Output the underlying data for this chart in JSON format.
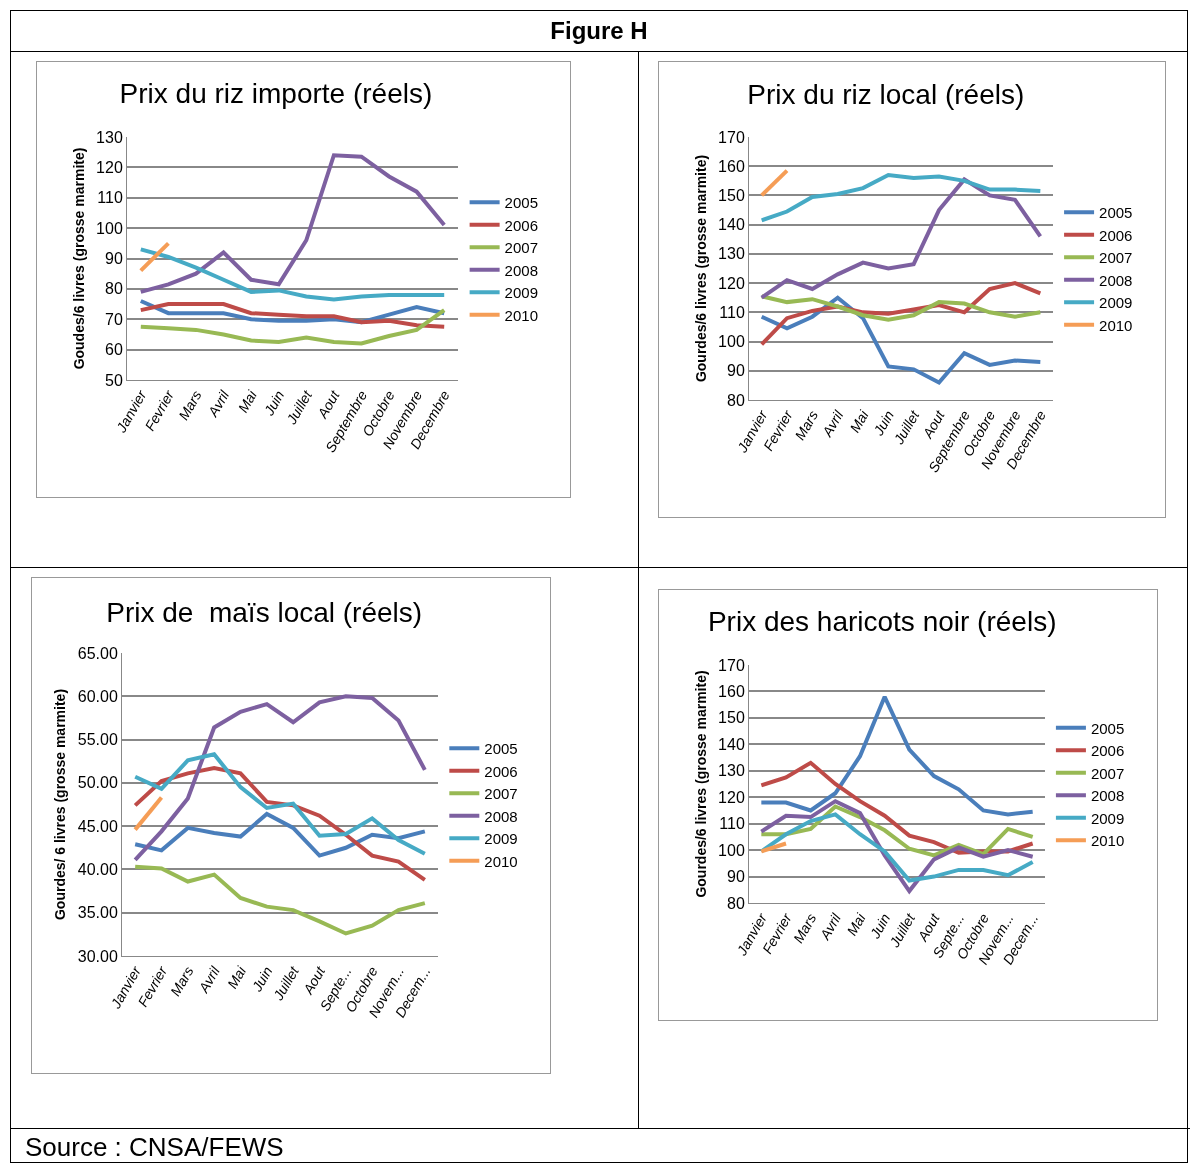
{
  "chart_data": [
    {
      "type": "line",
      "title": "Prix du riz importe (réels)",
      "ylabel": "Goudes/6 livres (grosse marmite)",
      "annotations": [
        "Figure H"
      ],
      "categories": [
        "Janvier",
        "Fevrier",
        "Mars",
        "Avril",
        "Mai",
        "Juin",
        "Juillet",
        "Aout",
        "Septembre",
        "Octobre",
        "Novembre",
        "Decembre"
      ],
      "ylim": [
        50,
        130
      ],
      "yticks": [
        50,
        60,
        70,
        80,
        90,
        100,
        110,
        120,
        130
      ],
      "grid": "y",
      "legend": "right",
      "marker": "none",
      "line_style": "solid",
      "series": [
        {
          "name": "2005",
          "color": "#4a7ebb",
          "values": [
            76,
            72,
            72,
            72,
            70,
            69.5,
            69.5,
            70,
            69,
            71.5,
            74,
            72
          ]
        },
        {
          "name": "2006",
          "color": "#be4b48",
          "values": [
            73,
            75,
            75,
            75,
            72,
            71.5,
            71,
            71,
            69,
            69.5,
            68,
            67.5
          ]
        },
        {
          "name": "2007",
          "color": "#98b954",
          "values": [
            67.5,
            67,
            66.5,
            65,
            63,
            62.5,
            64,
            62.5,
            62,
            64.5,
            66.5,
            73
          ]
        },
        {
          "name": "2008",
          "color": "#7d60a0",
          "values": [
            79,
            81.5,
            85,
            92,
            83,
            81.5,
            96,
            124,
            123.5,
            117,
            112,
            101
          ]
        },
        {
          "name": "2009",
          "color": "#46aac5",
          "values": [
            93,
            90.5,
            87,
            83,
            79,
            79.5,
            77.5,
            76.5,
            77.5,
            78,
            78,
            78
          ]
        },
        {
          "name": "2010",
          "color": "#f59d56",
          "values": [
            86,
            95,
            null,
            null,
            null,
            null,
            null,
            null,
            null,
            null,
            null,
            null
          ]
        }
      ]
    },
    {
      "type": "line",
      "title": "Prix du riz local (réels)",
      "ylabel": "Gourdes/6 livres (grosse marmite)",
      "categories": [
        "Janvier",
        "Fevrier",
        "Mars",
        "Avril",
        "Mai",
        "Juin",
        "Juillet",
        "Aout",
        "Septembre",
        "Octobre",
        "Novembre",
        "Decembre"
      ],
      "ylim": [
        80,
        170
      ],
      "yticks": [
        80,
        90,
        100,
        110,
        120,
        130,
        140,
        150,
        160,
        170
      ],
      "grid": "y",
      "legend": "right",
      "marker": "none",
      "line_style": "solid",
      "series": [
        {
          "name": "2005",
          "color": "#4a7ebb",
          "values": [
            108.5,
            104.5,
            108.5,
            115,
            108,
            91.5,
            90.5,
            86,
            96,
            92,
            93.5,
            93
          ]
        },
        {
          "name": "2006",
          "color": "#be4b48",
          "values": [
            99,
            108,
            110.5,
            112,
            110,
            109.5,
            111,
            112.5,
            110,
            118,
            120,
            116.5
          ]
        },
        {
          "name": "2007",
          "color": "#98b954",
          "values": [
            115.5,
            113.5,
            114.5,
            112,
            109,
            107.5,
            109,
            113.5,
            113,
            110,
            108.5,
            110
          ]
        },
        {
          "name": "2008",
          "color": "#7d60a0",
          "values": [
            115,
            121,
            118,
            123,
            127,
            125,
            126.5,
            145,
            155.5,
            150,
            148.5,
            136
          ]
        },
        {
          "name": "2009",
          "color": "#46aac5",
          "values": [
            141.5,
            144.5,
            149.5,
            150.5,
            152.5,
            157,
            156,
            156.5,
            155,
            152,
            152,
            151.5
          ]
        },
        {
          "name": "2010",
          "color": "#f59d56",
          "values": [
            150,
            158.5,
            null,
            null,
            null,
            null,
            null,
            null,
            null,
            null,
            null,
            null
          ]
        }
      ]
    },
    {
      "type": "line",
      "title": "Prix de  maïs local (réels)",
      "ylabel": "Gourdes/ 6 livres (grosse marmite)",
      "categories": [
        "Janvier",
        "Fevrier",
        "Mars",
        "Avril",
        "Mai",
        "Juin",
        "Juillet",
        "Aout",
        "Septe...",
        "Octobre",
        "Novem...",
        "Decem..."
      ],
      "ylim": [
        30,
        65
      ],
      "yticks": [
        {
          "value": 30,
          "label": "30.00"
        },
        {
          "value": 35,
          "label": "35.00"
        },
        {
          "value": 40,
          "label": "40.00"
        },
        {
          "value": 45,
          "label": "45.00"
        },
        {
          "value": 50,
          "label": "50.00"
        },
        {
          "value": 55,
          "label": "55.00"
        },
        {
          "value": 60,
          "label": "60.00"
        },
        {
          "value": 65,
          "label": "65.00"
        }
      ],
      "grid": "y",
      "legend": "right",
      "marker": "none",
      "line_style": "solid",
      "series": [
        {
          "name": "2005",
          "color": "#4a7ebb",
          "values": [
            42.9,
            42.2,
            44.8,
            44.2,
            43.8,
            46.4,
            44.8,
            41.6,
            42.5,
            44.0,
            43.6,
            44.4
          ]
        },
        {
          "name": "2006",
          "color": "#be4b48",
          "values": [
            47.4,
            50.2,
            51.1,
            51.7,
            51.1,
            47.8,
            47.4,
            46.2,
            44.0,
            41.6,
            40.9,
            38.8
          ]
        },
        {
          "name": "2007",
          "color": "#98b954",
          "values": [
            40.3,
            40.1,
            38.6,
            39.4,
            36.7,
            35.7,
            35.3,
            34.0,
            32.6,
            33.5,
            35.3,
            36.1
          ]
        },
        {
          "name": "2008",
          "color": "#7d60a0",
          "values": [
            41.1,
            44.4,
            48.2,
            56.4,
            58.2,
            59.1,
            57.0,
            59.3,
            60.0,
            59.8,
            57.2,
            51.5
          ]
        },
        {
          "name": "2009",
          "color": "#46aac5",
          "values": [
            50.7,
            49.3,
            52.6,
            53.3,
            49.5,
            47.1,
            47.6,
            43.9,
            44.1,
            45.9,
            43.4,
            41.8
          ]
        },
        {
          "name": "2010",
          "color": "#f59d56",
          "values": [
            44.6,
            48.3,
            null,
            null,
            null,
            null,
            null,
            null,
            null,
            null,
            null,
            null
          ]
        }
      ]
    },
    {
      "type": "line",
      "title": "Prix des haricots noir (réels)",
      "ylabel": "Gourdes/6 livres (grosse marmite)",
      "annotations": [
        "Source : CNSA/FEWS"
      ],
      "categories": [
        "Janvier",
        "Fevrier",
        "Mars",
        "Avril",
        "Mai",
        "Juin",
        "Juillet",
        "Aout",
        "Septe...",
        "Octobre",
        "Novem...",
        "Decem..."
      ],
      "ylim": [
        80,
        170
      ],
      "yticks": [
        80,
        90,
        100,
        110,
        120,
        130,
        140,
        150,
        160,
        170
      ],
      "grid": "y",
      "legend": "right",
      "marker": "none",
      "line_style": "solid",
      "series": [
        {
          "name": "2005",
          "color": "#4a7ebb",
          "values": [
            118,
            118,
            115,
            121.5,
            135.5,
            158,
            138,
            128,
            123,
            115,
            113.5,
            114.5
          ]
        },
        {
          "name": "2006",
          "color": "#be4b48",
          "values": [
            124.5,
            127.5,
            133,
            125,
            118.5,
            113,
            105.5,
            103,
            99,
            99.5,
            99.5,
            102.5
          ]
        },
        {
          "name": "2007",
          "color": "#98b954",
          "values": [
            106,
            106,
            108,
            116.5,
            112.5,
            107.5,
            100.5,
            98,
            102,
            98.5,
            108,
            105
          ]
        },
        {
          "name": "2008",
          "color": "#7d60a0",
          "values": [
            107,
            113,
            112.5,
            118.5,
            114,
            98,
            84.5,
            96.5,
            101,
            97.5,
            100,
            97.5
          ]
        },
        {
          "name": "2009",
          "color": "#46aac5",
          "values": [
            99.5,
            106,
            111,
            113.5,
            106,
            99.5,
            88.5,
            90,
            92.5,
            92.5,
            90.5,
            95.5
          ]
        },
        {
          "name": "2010",
          "color": "#f59d56",
          "values": [
            99.5,
            102.5,
            null,
            null,
            null,
            null,
            null,
            null,
            null,
            null,
            null,
            null
          ]
        }
      ]
    }
  ]
}
